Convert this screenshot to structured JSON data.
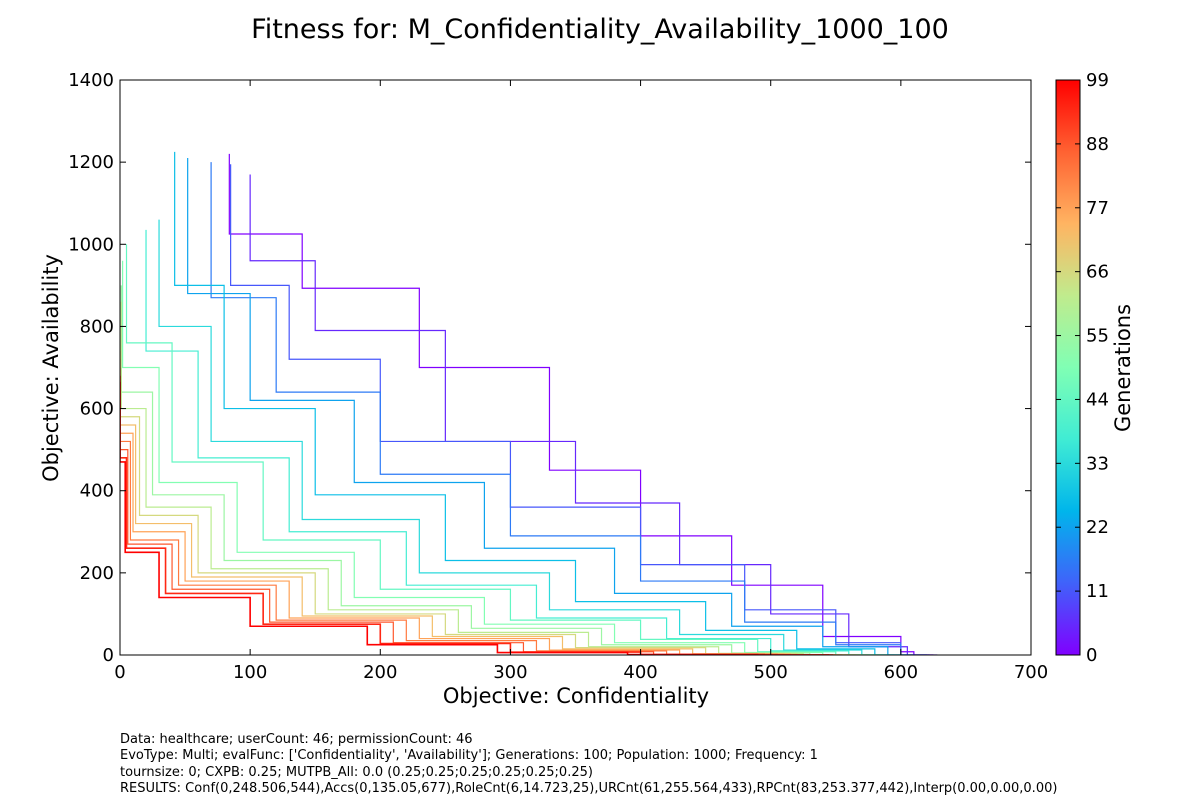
{
  "chart_data": {
    "type": "line",
    "title": "Fitness for: M_Confidentiality_Availability_1000_100",
    "xlabel": "Objective: Confidentiality",
    "ylabel": "Objective: Availability",
    "xlim": [
      0,
      700
    ],
    "ylim": [
      0,
      1400
    ],
    "xticks": [
      0,
      100,
      200,
      300,
      400,
      500,
      600,
      700
    ],
    "yticks": [
      0,
      200,
      400,
      600,
      800,
      1000,
      1200,
      1400
    ],
    "grid": false,
    "colorbar": {
      "label": "Generations",
      "colormap": "rainbow",
      "range": [
        0,
        99
      ],
      "ticks": [
        0,
        11,
        22,
        33,
        44,
        55,
        66,
        77,
        88,
        99
      ],
      "colors": [
        "#8000ff",
        "#4062fa",
        "#00b5eb",
        "#40ecd4",
        "#80ffb4",
        "#c0eb8d",
        "#ffb462",
        "#ff6232",
        "#ff0000"
      ]
    },
    "series_description_keys": [
      "generation",
      "start_x",
      "start_y",
      "end_x"
    ],
    "series": [
      {
        "generation": 0,
        "points": [
          [
            84,
            1220
          ],
          [
            140,
            1025
          ],
          [
            230,
            893
          ],
          [
            330,
            700
          ],
          [
            400,
            450
          ],
          [
            470,
            290
          ],
          [
            540,
            170
          ],
          [
            600,
            45
          ],
          [
            610,
            8
          ],
          [
            625,
            0
          ]
        ]
      },
      {
        "generation": 5,
        "points": [
          [
            100,
            1170
          ],
          [
            150,
            960
          ],
          [
            250,
            790
          ],
          [
            350,
            520
          ],
          [
            430,
            370
          ],
          [
            500,
            220
          ],
          [
            560,
            100
          ],
          [
            605,
            20
          ],
          [
            628,
            0
          ]
        ]
      },
      {
        "generation": 11,
        "points": [
          [
            85,
            1195
          ],
          [
            130,
            900
          ],
          [
            200,
            720
          ],
          [
            300,
            520
          ],
          [
            400,
            360
          ],
          [
            480,
            220
          ],
          [
            550,
            110
          ],
          [
            600,
            30
          ],
          [
            622,
            0
          ]
        ]
      },
      {
        "generation": 16,
        "points": [
          [
            70,
            1200
          ],
          [
            120,
            870
          ],
          [
            200,
            640
          ],
          [
            300,
            440
          ],
          [
            400,
            290
          ],
          [
            480,
            180
          ],
          [
            550,
            80
          ],
          [
            600,
            25
          ],
          [
            620,
            0
          ]
        ]
      },
      {
        "generation": 22,
        "points": [
          [
            52,
            1210
          ],
          [
            100,
            880
          ],
          [
            180,
            620
          ],
          [
            280,
            420
          ],
          [
            380,
            260
          ],
          [
            470,
            150
          ],
          [
            540,
            70
          ],
          [
            590,
            20
          ],
          [
            610,
            0
          ]
        ]
      },
      {
        "generation": 27,
        "points": [
          [
            42,
            1225
          ],
          [
            80,
            900
          ],
          [
            150,
            600
          ],
          [
            250,
            390
          ],
          [
            350,
            230
          ],
          [
            450,
            130
          ],
          [
            520,
            60
          ],
          [
            580,
            15
          ],
          [
            605,
            0
          ]
        ]
      },
      {
        "generation": 33,
        "points": [
          [
            30,
            1060
          ],
          [
            70,
            800
          ],
          [
            140,
            520
          ],
          [
            230,
            330
          ],
          [
            330,
            200
          ],
          [
            430,
            110
          ],
          [
            510,
            50
          ],
          [
            570,
            12
          ],
          [
            600,
            0
          ]
        ]
      },
      {
        "generation": 38,
        "points": [
          [
            20,
            1035
          ],
          [
            60,
            740
          ],
          [
            130,
            480
          ],
          [
            220,
            300
          ],
          [
            320,
            170
          ],
          [
            420,
            90
          ],
          [
            500,
            40
          ],
          [
            560,
            10
          ],
          [
            595,
            0
          ]
        ]
      },
      {
        "generation": 44,
        "points": [
          [
            5,
            1000
          ],
          [
            40,
            760
          ],
          [
            110,
            470
          ],
          [
            200,
            280
          ],
          [
            300,
            160
          ],
          [
            400,
            85
          ],
          [
            490,
            38
          ],
          [
            550,
            8
          ],
          [
            590,
            0
          ]
        ]
      },
      {
        "generation": 50,
        "points": [
          [
            2,
            960
          ],
          [
            30,
            700
          ],
          [
            90,
            420
          ],
          [
            180,
            250
          ],
          [
            280,
            140
          ],
          [
            380,
            75
          ],
          [
            480,
            30
          ],
          [
            540,
            6
          ],
          [
            585,
            0
          ]
        ]
      },
      {
        "generation": 55,
        "points": [
          [
            1,
            900
          ],
          [
            25,
            640
          ],
          [
            80,
            390
          ],
          [
            170,
            230
          ],
          [
            270,
            120
          ],
          [
            370,
            65
          ],
          [
            470,
            25
          ],
          [
            530,
            5
          ],
          [
            580,
            0
          ]
        ]
      },
      {
        "generation": 61,
        "points": [
          [
            1,
            860
          ],
          [
            20,
            600
          ],
          [
            70,
            360
          ],
          [
            160,
            210
          ],
          [
            260,
            110
          ],
          [
            360,
            55
          ],
          [
            460,
            20
          ],
          [
            525,
            4
          ],
          [
            575,
            0
          ]
        ]
      },
      {
        "generation": 66,
        "points": [
          [
            0,
            820
          ],
          [
            15,
            580
          ],
          [
            60,
            340
          ],
          [
            150,
            200
          ],
          [
            250,
            100
          ],
          [
            350,
            50
          ],
          [
            450,
            18
          ],
          [
            520,
            3
          ],
          [
            570,
            0
          ]
        ]
      },
      {
        "generation": 72,
        "points": [
          [
            0,
            780
          ],
          [
            12,
            560
          ],
          [
            55,
            320
          ],
          [
            140,
            190
          ],
          [
            240,
            95
          ],
          [
            340,
            45
          ],
          [
            440,
            15
          ],
          [
            515,
            3
          ],
          [
            565,
            0
          ]
        ]
      },
      {
        "generation": 77,
        "points": [
          [
            0,
            740
          ],
          [
            10,
            540
          ],
          [
            50,
            300
          ],
          [
            130,
            180
          ],
          [
            230,
            90
          ],
          [
            330,
            40
          ],
          [
            430,
            12
          ],
          [
            510,
            2
          ],
          [
            560,
            0
          ]
        ]
      },
      {
        "generation": 83,
        "points": [
          [
            0,
            720
          ],
          [
            8,
            520
          ],
          [
            45,
            280
          ],
          [
            120,
            170
          ],
          [
            220,
            85
          ],
          [
            320,
            35
          ],
          [
            420,
            10
          ],
          [
            505,
            2
          ],
          [
            555,
            0
          ]
        ]
      },
      {
        "generation": 88,
        "points": [
          [
            0,
            700
          ],
          [
            6,
            500
          ],
          [
            40,
            270
          ],
          [
            115,
            160
          ],
          [
            210,
            80
          ],
          [
            310,
            30
          ],
          [
            410,
            8
          ],
          [
            500,
            1
          ],
          [
            550,
            0
          ]
        ]
      },
      {
        "generation": 94,
        "points": [
          [
            0,
            680
          ],
          [
            5,
            480
          ],
          [
            35,
            260
          ],
          [
            110,
            150
          ],
          [
            200,
            75
          ],
          [
            300,
            28
          ],
          [
            400,
            7
          ],
          [
            495,
            1
          ],
          [
            548,
            0
          ]
        ]
      },
      {
        "generation": 99,
        "points": [
          [
            0,
            665
          ],
          [
            4,
            470
          ],
          [
            30,
            250
          ],
          [
            100,
            140
          ],
          [
            190,
            70
          ],
          [
            290,
            25
          ],
          [
            390,
            6
          ],
          [
            490,
            1
          ],
          [
            545,
            0
          ]
        ]
      }
    ]
  },
  "footer": {
    "line1": "Data: healthcare; userCount: 46; permissionCount: 46",
    "line2": "EvoType: Multi; evalFunc: ['Confidentiality', 'Availability']; Generations: 100; Population: 1000; Frequency: 1",
    "line3": "tournsize: 0; CXPB: 0.25; MUTPB_All: 0.0 (0.25;0.25;0.25;0.25;0.25;0.25)",
    "line4": "RESULTS: Conf(0,248.506,544),Accs(0,135.05,677),RoleCnt(6,14.723,25),URCnt(61,255.564,433),RPCnt(83,253.377,442),Interp(0.00,0.00,0.00)"
  }
}
